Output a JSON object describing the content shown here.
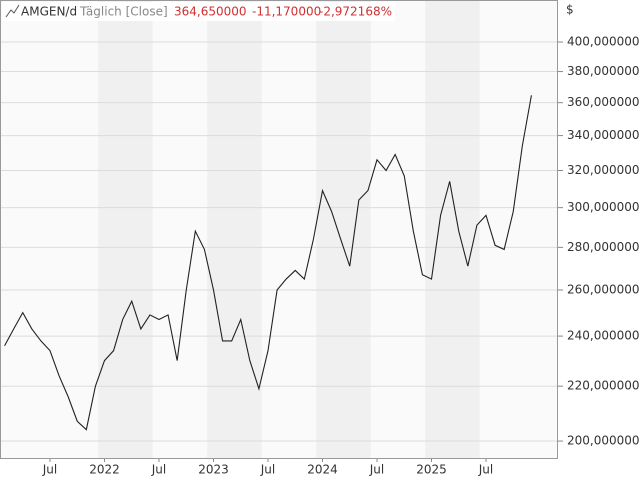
{
  "chart_data": {
    "type": "line",
    "title": "AMGEN/d",
    "subtitle": "Täglich [Close]",
    "annotations": [
      "364,650000",
      "-11,170000",
      "-2,972168%"
    ],
    "y_label": "$",
    "x": [
      "2021-02",
      "2021-03",
      "2021-04",
      "2021-05",
      "2021-06",
      "2021-07",
      "2021-08",
      "2021-09",
      "2021-10",
      "2021-11",
      "2021-12",
      "2022-01",
      "2022-02",
      "2022-03",
      "2022-04",
      "2022-05",
      "2022-06",
      "2022-07",
      "2022-08",
      "2022-09",
      "2022-10",
      "2022-11",
      "2022-12",
      "2023-01",
      "2023-02",
      "2023-03",
      "2023-04",
      "2023-05",
      "2023-06",
      "2023-07",
      "2023-08",
      "2023-09",
      "2023-10",
      "2023-11",
      "2023-12",
      "2024-01",
      "2024-02",
      "2024-03",
      "2024-04",
      "2024-05",
      "2024-06",
      "2024-07",
      "2024-08",
      "2024-09",
      "2024-10",
      "2024-11",
      "2024-12",
      "2025-01",
      "2025-02",
      "2025-03",
      "2025-04",
      "2025-05",
      "2025-06",
      "2025-07",
      "2025-08",
      "2025-09",
      "2025-10",
      "2025-11",
      "2025-12"
    ],
    "series": [
      {
        "name": "AMGEN",
        "color": "#222222",
        "values": [
          236,
          243,
          250,
          243,
          238,
          234,
          224,
          216,
          207,
          204,
          220,
          230,
          234,
          247,
          255,
          243,
          249,
          247,
          249,
          230,
          260,
          288,
          279,
          260,
          238,
          238,
          247,
          230,
          219,
          234,
          260,
          265,
          269,
          265,
          284,
          309,
          298,
          284,
          271,
          304,
          309,
          326,
          320,
          329,
          317,
          288,
          267,
          265,
          296,
          314,
          288,
          271,
          291,
          296,
          281,
          279,
          298,
          334,
          364.65
        ]
      }
    ],
    "log_scale": true,
    "ylim": [
      194.2,
      430.3
    ],
    "yticks": [
      {
        "value": 200,
        "label": "200,000000"
      },
      {
        "value": 220,
        "label": "220,000000"
      },
      {
        "value": 240,
        "label": "240,000000"
      },
      {
        "value": 260,
        "label": "260,000000"
      },
      {
        "value": 280,
        "label": "280,000000"
      },
      {
        "value": 300,
        "label": "300,000000"
      },
      {
        "value": 320,
        "label": "320,000000"
      },
      {
        "value": 340,
        "label": "340,000000"
      },
      {
        "value": 360,
        "label": "360,000000"
      },
      {
        "value": 380,
        "label": "380,000000"
      },
      {
        "value": 400,
        "label": "400,000000"
      }
    ],
    "xticks": [
      {
        "value": "2021-07",
        "label": "Jul"
      },
      {
        "value": "2022-01",
        "label": "2022"
      },
      {
        "value": "2022-07",
        "label": "Jul"
      },
      {
        "value": "2023-01",
        "label": "2023"
      },
      {
        "value": "2023-07",
        "label": "Jul"
      },
      {
        "value": "2024-01",
        "label": "2024"
      },
      {
        "value": "2024-07",
        "label": "Jul"
      },
      {
        "value": "2025-01",
        "label": "2025"
      },
      {
        "value": "2025-07",
        "label": "Jul"
      }
    ],
    "grid": true
  }
}
